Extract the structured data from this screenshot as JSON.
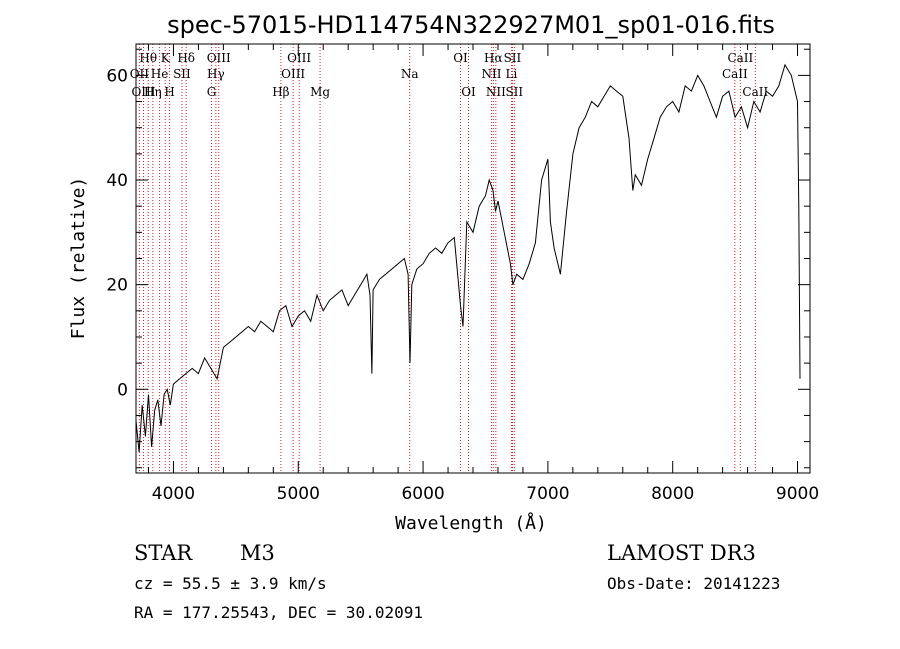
{
  "chart_data": {
    "type": "line",
    "title": "spec-57015-HD114754N322927M01_sp01-016.fits",
    "xlabel": "Wavelength (Å)",
    "ylabel": "Flux (relative)",
    "xlim": [
      3700,
      9100
    ],
    "ylim": [
      -16,
      66
    ],
    "xticks": [
      {
        "value": 4000,
        "label": "4000"
      },
      {
        "value": 5000,
        "label": "5000"
      },
      {
        "value": 6000,
        "label": "6000"
      },
      {
        "value": 7000,
        "label": "7000"
      },
      {
        "value": 8000,
        "label": "8000"
      },
      {
        "value": 9000,
        "label": "9000"
      }
    ],
    "yticks": [
      {
        "value": 0,
        "label": "0"
      },
      {
        "value": 20,
        "label": "20"
      },
      {
        "value": 40,
        "label": "40"
      },
      {
        "value": 60,
        "label": "60"
      }
    ],
    "series": [
      {
        "name": "flux",
        "x": [
          3700,
          3725,
          3750,
          3775,
          3800,
          3825,
          3850,
          3875,
          3900,
          3925,
          3950,
          3975,
          4000,
          4050,
          4100,
          4150,
          4200,
          4250,
          4300,
          4350,
          4400,
          4450,
          4500,
          4550,
          4600,
          4650,
          4700,
          4750,
          4800,
          4850,
          4900,
          4950,
          5000,
          5050,
          5100,
          5150,
          5200,
          5250,
          5300,
          5350,
          5400,
          5450,
          5500,
          5550,
          5575,
          5590,
          5600,
          5650,
          5700,
          5750,
          5800,
          5850,
          5880,
          5895,
          5910,
          5950,
          6000,
          6050,
          6100,
          6150,
          6200,
          6250,
          6300,
          6320,
          6350,
          6400,
          6450,
          6500,
          6530,
          6560,
          6580,
          6600,
          6650,
          6700,
          6720,
          6750,
          6800,
          6850,
          6900,
          6950,
          7000,
          7020,
          7050,
          7100,
          7150,
          7200,
          7250,
          7300,
          7350,
          7400,
          7450,
          7500,
          7550,
          7600,
          7650,
          7680,
          7700,
          7750,
          7800,
          7850,
          7900,
          7950,
          8000,
          8050,
          8100,
          8150,
          8200,
          8250,
          8300,
          8350,
          8400,
          8450,
          8500,
          8550,
          8600,
          8650,
          8700,
          8750,
          8800,
          8850,
          8900,
          8950,
          9000,
          9010,
          9020
        ],
        "y": [
          -6,
          -12,
          -3,
          -9,
          -1,
          -11,
          -4,
          -2,
          -7,
          -1,
          0,
          -3,
          1,
          2,
          3,
          4,
          3,
          6,
          4,
          2,
          8,
          9,
          10,
          11,
          12,
          11,
          13,
          12,
          11,
          15,
          16,
          12,
          14,
          15,
          13,
          18,
          15,
          17,
          18,
          19,
          16,
          18,
          20,
          22,
          18,
          3,
          19,
          21,
          22,
          23,
          24,
          25,
          22,
          5,
          20,
          23,
          24,
          26,
          27,
          26,
          28,
          29,
          16,
          12,
          32,
          30,
          35,
          37,
          40,
          38,
          34,
          36,
          30,
          24,
          20,
          22,
          21,
          24,
          28,
          40,
          44,
          32,
          27,
          22,
          34,
          45,
          50,
          52,
          55,
          54,
          56,
          58,
          57,
          56,
          48,
          38,
          41,
          39,
          44,
          48,
          52,
          54,
          55,
          53,
          58,
          57,
          60,
          58,
          55,
          52,
          56,
          57,
          52,
          54,
          50,
          55,
          53,
          57,
          56,
          58,
          62,
          60,
          55,
          35,
          2
        ]
      }
    ],
    "spectral_lines": [
      {
        "name": "Hθ",
        "wavelength": 3798,
        "row": 1
      },
      {
        "name": "OII",
        "wavelength": 3727,
        "row": 2
      },
      {
        "name": "OIII",
        "wavelength": 3760,
        "row": 3
      },
      {
        "name": "Hη",
        "wavelength": 3835,
        "row": 3
      },
      {
        "name": "K",
        "wavelength": 3934,
        "row": 1
      },
      {
        "name": "He",
        "wavelength": 3889,
        "row": 2
      },
      {
        "name": "SII",
        "wavelength": 4068,
        "row": 2
      },
      {
        "name": "H",
        "wavelength": 3969,
        "row": 3
      },
      {
        "name": "Hδ",
        "wavelength": 4102,
        "row": 1
      },
      {
        "name": "OIII",
        "wavelength": 4363,
        "row": 1
      },
      {
        "name": "Hγ",
        "wavelength": 4340,
        "row": 2
      },
      {
        "name": "G",
        "wavelength": 4305,
        "row": 3
      },
      {
        "name": "Hβ",
        "wavelength": 4861,
        "row": 3
      },
      {
        "name": "OIII",
        "wavelength": 5007,
        "row": 1
      },
      {
        "name": "OIII",
        "wavelength": 4959,
        "row": 2
      },
      {
        "name": "Mg",
        "wavelength": 5175,
        "row": 3
      },
      {
        "name": "Na",
        "wavelength": 5893,
        "row": 2
      },
      {
        "name": "OI",
        "wavelength": 6300,
        "row": 1
      },
      {
        "name": "OI",
        "wavelength": 6364,
        "row": 3
      },
      {
        "name": "Hα",
        "wavelength": 6563,
        "row": 1
      },
      {
        "name": "SII",
        "wavelength": 6716,
        "row": 1
      },
      {
        "name": "NII",
        "wavelength": 6548,
        "row": 2
      },
      {
        "name": "Li",
        "wavelength": 6708,
        "row": 2
      },
      {
        "name": "NII",
        "wavelength": 6583,
        "row": 3
      },
      {
        "name": "SII",
        "wavelength": 6731,
        "row": 3
      },
      {
        "name": "CaII",
        "wavelength": 8542,
        "row": 1
      },
      {
        "name": "CaII",
        "wavelength": 8498,
        "row": 2
      },
      {
        "name": "CaII",
        "wavelength": 8662,
        "row": 3
      }
    ],
    "line_color": "#000000",
    "marker_color": "#cc2222"
  },
  "info": {
    "class": "STAR",
    "subclass": "M3",
    "survey": "LAMOST DR3",
    "redshift": "cz = 55.5 ± 3.9 km/s",
    "obs_date": "Obs-Date: 20141223",
    "coords": "RA = 177.25543, DEC =  30.02091"
  }
}
